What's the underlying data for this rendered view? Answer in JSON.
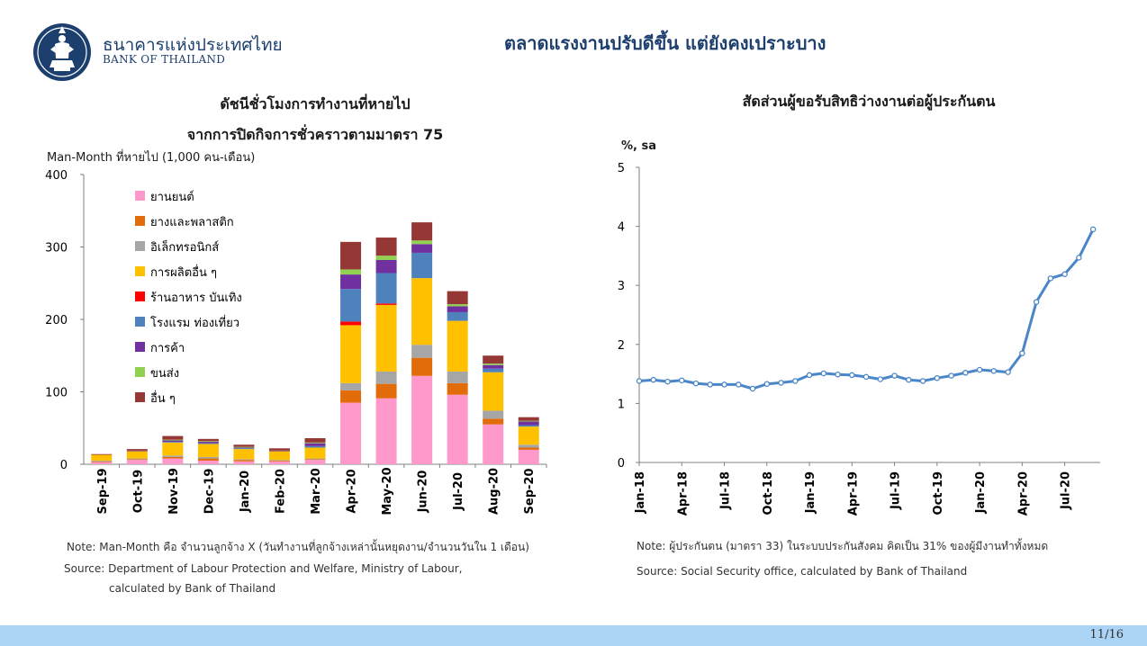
{
  "header": {
    "org_name_th": "ธนาคารแห่งประเทศไทย",
    "org_name_en": "BANK OF THAILAND",
    "page_title": "ตลาดแรงงานปรับดีขึ้น แต่ยังคงเปราะบาง"
  },
  "chart_data": [
    {
      "type": "bar",
      "stacked": true,
      "title_line1": "ดัชนีชั่วโมงการทำงานที่หายไป",
      "title_line2": "จากการปิดกิจการชั่วคราวตามมาตรา 75",
      "ylabel": "Man-Month ที่หายไป  (1,000 คน-เดือน)",
      "ylim": [
        0,
        400
      ],
      "yticks": [
        0,
        100,
        200,
        300,
        400
      ],
      "legend_position": "top-left",
      "categories": [
        "Sep-19",
        "Oct-19",
        "Nov-19",
        "Dec-19",
        "Jan-20",
        "Feb-20",
        "Mar-20",
        "Apr-20",
        "May-20",
        "Jun-20",
        "Jul-20",
        "Aug-20",
        "Sep-20"
      ],
      "series": [
        {
          "name": "ยานยนต์",
          "color": "#ff99cc",
          "values": [
            3,
            6,
            8,
            5,
            4,
            4,
            6,
            85,
            91,
            122,
            96,
            55,
            20
          ]
        },
        {
          "name": "ยางและพลาสติก",
          "color": "#e36c0a",
          "values": [
            1,
            1,
            2,
            3,
            2,
            1,
            1,
            17,
            20,
            25,
            16,
            8,
            3
          ]
        },
        {
          "name": "อิเล็กทรอนิกส์",
          "color": "#a6a6a6",
          "values": [
            1,
            1,
            2,
            2,
            1,
            1,
            1,
            10,
            17,
            18,
            16,
            11,
            4
          ]
        },
        {
          "name": "การผลิตอื่น ๆ",
          "color": "#ffc000",
          "values": [
            8,
            10,
            18,
            18,
            14,
            12,
            15,
            80,
            92,
            92,
            70,
            53,
            25
          ]
        },
        {
          "name": "ร้านอาหาร บันเทิง",
          "color": "#ff0000",
          "values": [
            0,
            0,
            0,
            0,
            0,
            0,
            0,
            5,
            2,
            0,
            0,
            0,
            0
          ]
        },
        {
          "name": "โรงแรม ท่องเที่ยว",
          "color": "#4f81bd",
          "values": [
            0,
            0,
            1,
            1,
            1,
            0,
            2,
            45,
            42,
            35,
            12,
            5,
            2
          ]
        },
        {
          "name": "การค้า",
          "color": "#7030a0",
          "values": [
            0,
            1,
            2,
            2,
            1,
            1,
            4,
            20,
            18,
            12,
            8,
            5,
            5
          ]
        },
        {
          "name": "ขนส่ง",
          "color": "#92d050",
          "values": [
            0,
            0,
            1,
            1,
            1,
            0,
            1,
            7,
            6,
            5,
            3,
            2,
            1
          ]
        },
        {
          "name": "อื่น ๆ",
          "color": "#953735",
          "values": [
            1,
            2,
            5,
            3,
            3,
            3,
            6,
            38,
            25,
            25,
            18,
            11,
            5
          ]
        }
      ]
    },
    {
      "type": "line",
      "title": "สัดส่วนผู้ขอรับสิทธิว่างงานต่อผู้ประกันตน",
      "ylabel": "%, sa",
      "ylim": [
        0,
        5
      ],
      "yticks": [
        0,
        1,
        2,
        3,
        4,
        5
      ],
      "grid": false,
      "color": "#4a86c8",
      "xtick_labels": [
        "Jan-18",
        "Apr-18",
        "Jul-18",
        "Oct-18",
        "Jan-19",
        "Apr-19",
        "Jul-19",
        "Oct-19",
        "Jan-20",
        "Apr-20",
        "Jul-20"
      ],
      "x": [
        "Jan-18",
        "Feb-18",
        "Mar-18",
        "Apr-18",
        "May-18",
        "Jun-18",
        "Jul-18",
        "Aug-18",
        "Sep-18",
        "Oct-18",
        "Nov-18",
        "Dec-18",
        "Jan-19",
        "Feb-19",
        "Mar-19",
        "Apr-19",
        "May-19",
        "Jun-19",
        "Jul-19",
        "Aug-19",
        "Sep-19",
        "Oct-19",
        "Nov-19",
        "Dec-19",
        "Jan-20",
        "Feb-20",
        "Mar-20",
        "Apr-20",
        "May-20",
        "Jun-20",
        "Jul-20",
        "Aug-20",
        "Sep-20"
      ],
      "values": [
        1.38,
        1.4,
        1.37,
        1.39,
        1.34,
        1.32,
        1.32,
        1.32,
        1.25,
        1.33,
        1.35,
        1.38,
        1.48,
        1.51,
        1.49,
        1.48,
        1.45,
        1.41,
        1.47,
        1.4,
        1.38,
        1.43,
        1.47,
        1.52,
        1.57,
        1.55,
        1.53,
        1.85,
        2.72,
        3.12,
        3.19,
        3.47,
        3.95
      ]
    }
  ],
  "notes": {
    "left_note": "Note: Man-Month คือ จำนวนลูกจ้าง X (วันทำงานที่ลูกจ้างเหล่านั้นหยุดงาน/จำนวนวันใน 1 เดือน)",
    "left_source_1": "Source: Department of Labour Protection and Welfare, Ministry of Labour,",
    "left_source_2": "calculated by Bank of Thailand",
    "right_note": "Note: ผู้ประกันตน (มาตรา 33) ในระบบประกันสังคม คิดเป็น 31% ของผู้มีงานทำทั้งหมด",
    "right_source": "Source: Social Security office, calculated by Bank of Thailand"
  },
  "footer": {
    "page_number": "11/16"
  }
}
